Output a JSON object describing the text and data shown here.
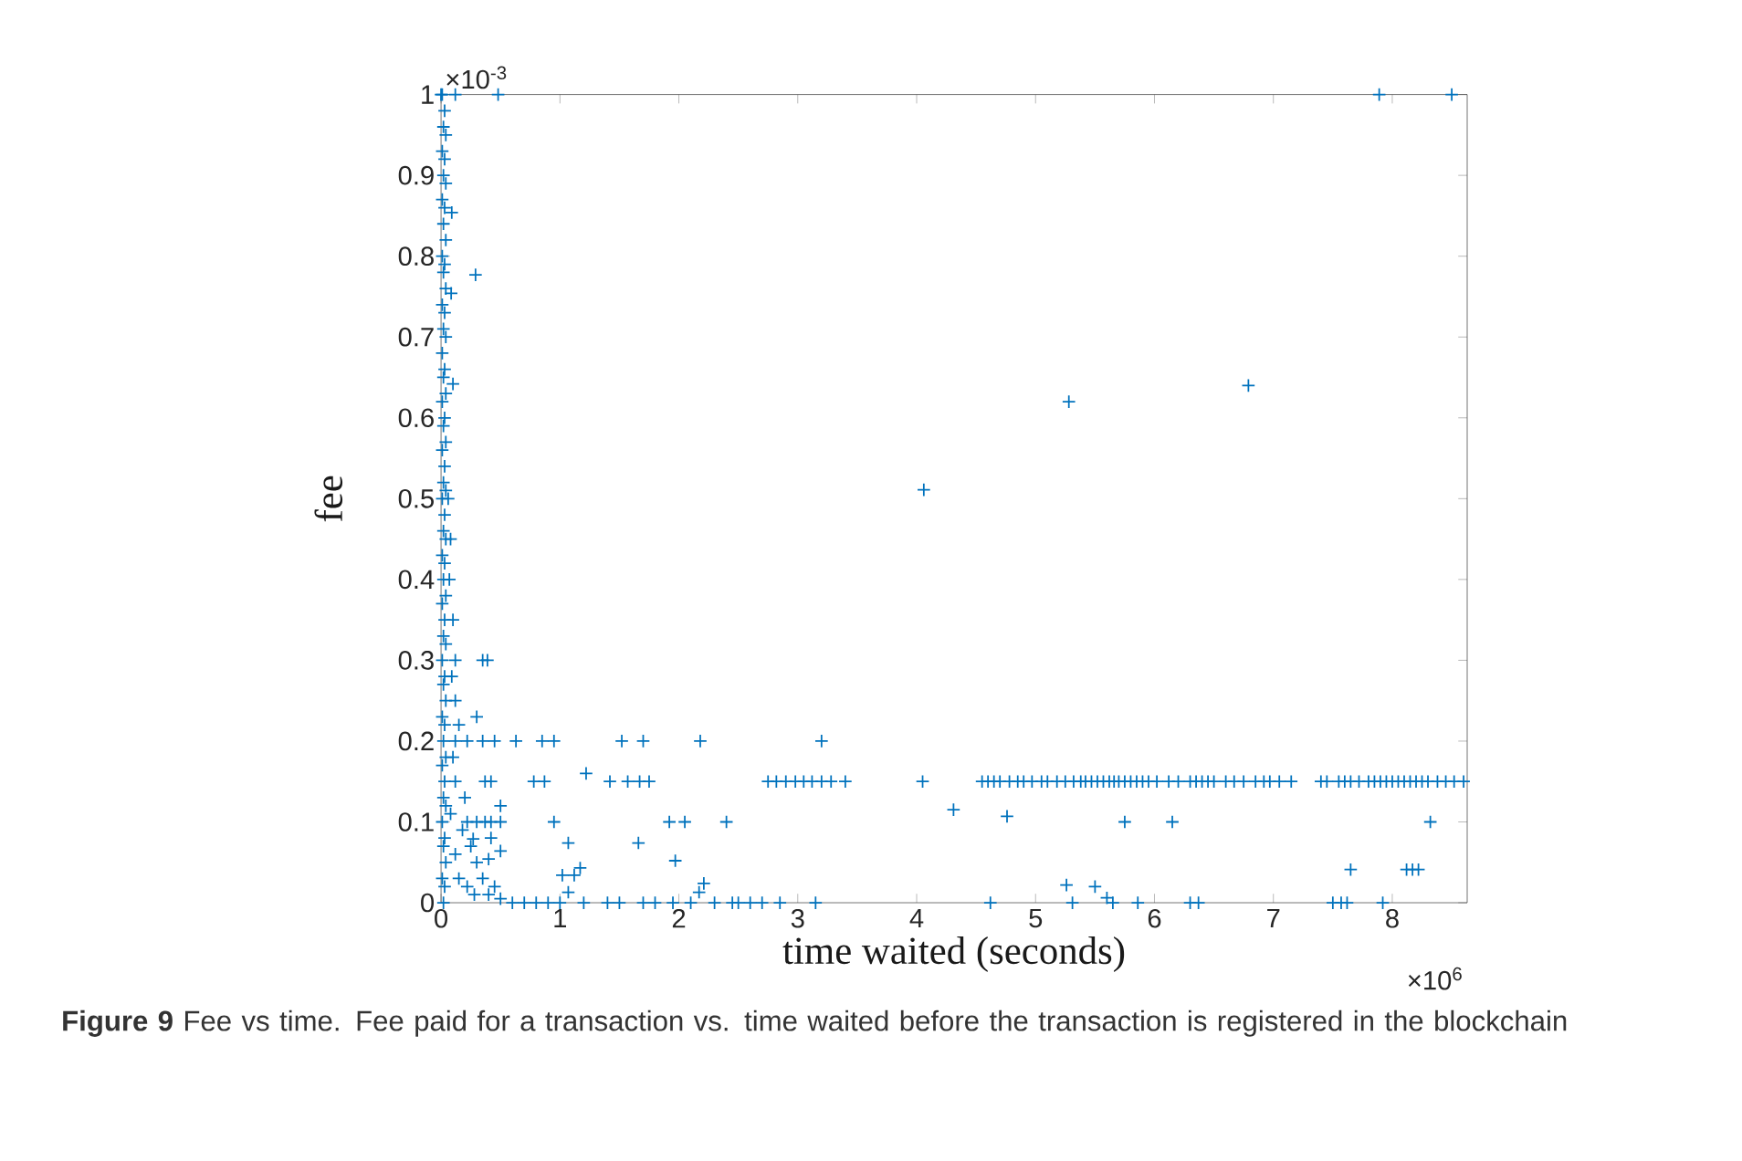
{
  "chart_data": {
    "type": "scatter",
    "xlabel": "time waited (seconds)",
    "ylabel": "fee",
    "marker": "cross",
    "xlim": [
      0,
      8.63
    ],
    "ylim": [
      0,
      1
    ],
    "xticks": [
      0,
      1,
      2,
      3,
      4,
      5,
      6,
      7,
      8
    ],
    "yticks": [
      0,
      0.1,
      0.2,
      0.3,
      0.4,
      0.5,
      0.6,
      0.7,
      0.8,
      0.9,
      1
    ],
    "annotations": [
      "×10$^{-3}$",
      "×10$^{6}$",
      "**Figure 9**  Fee vs time. Fee paid for a transaction vs. time waited before the transaction is registered in the blockchain"
    ],
    "series": [
      {
        "color": "#0072bd",
        "x": [
          0.01,
          0.03,
          0.02,
          0.04,
          0.01,
          0.03,
          0.02,
          0.04,
          0.01,
          0.03,
          0.02,
          0.04,
          0.01,
          0.03,
          0.02,
          0.04,
          0.01,
          0.03,
          0.02,
          0.04,
          0.01,
          0.03,
          0.02,
          0.04,
          0.01,
          0.03,
          0.02,
          0.04,
          0.01,
          0.03,
          0.02,
          0.04,
          0.01,
          0.03,
          0.02,
          0.04,
          0.01,
          0.03,
          0.02,
          0.04,
          0.01,
          0.03,
          0.02,
          0.04,
          0.01,
          0.03,
          0.02,
          0.04,
          0.01,
          0.03,
          0.02,
          0.04,
          0.01,
          0.03,
          0.02,
          0.04,
          0.01,
          0.03,
          0.02,
          0.04,
          0.01,
          0.03,
          0.02
        ],
        "values": [
          1.0,
          0.98,
          0.96,
          0.95,
          0.93,
          0.92,
          0.9,
          0.89,
          0.87,
          0.86,
          0.84,
          0.82,
          0.8,
          0.79,
          0.78,
          0.76,
          0.74,
          0.73,
          0.71,
          0.7,
          0.68,
          0.66,
          0.65,
          0.63,
          0.62,
          0.6,
          0.59,
          0.57,
          0.56,
          0.54,
          0.52,
          0.51,
          0.5,
          0.48,
          0.46,
          0.45,
          0.43,
          0.42,
          0.4,
          0.38,
          0.37,
          0.35,
          0.33,
          0.32,
          0.3,
          0.28,
          0.27,
          0.25,
          0.23,
          0.22,
          0.2,
          0.18,
          0.17,
          0.15,
          0.13,
          0.12,
          0.1,
          0.08,
          0.07,
          0.05,
          0.03,
          0.02,
          0
        ]
      },
      {
        "color": "#0072bd",
        "x": [
          0.06,
          0.08,
          0.07,
          0.1,
          0.09,
          0.12,
          0.15,
          0.1,
          0.2,
          0.18,
          0.25,
          0.3,
          0.35,
          0.15,
          0.22,
          0.4,
          0.45,
          0.5,
          0.28,
          0.12,
          0.08
        ],
        "values": [
          0.5,
          0.45,
          0.4,
          0.35,
          0.28,
          0.25,
          0.22,
          0.18,
          0.13,
          0.09,
          0.07,
          0.05,
          0.03,
          0.03,
          0.02,
          0.01,
          0.02,
          0.005,
          0.01,
          0.06,
          0.11
        ]
      },
      {
        "color": "#0072bd",
        "x": [
          0,
          0.12,
          0.48,
          0.09,
          0.29,
          0.085,
          0.1,
          0.12,
          0.35,
          0.39,
          0.3,
          0.27,
          0.5,
          0.5,
          1.07,
          1.66,
          1.97,
          1.02,
          1.12,
          1.17,
          1.07,
          2.21,
          2.17,
          0.42,
          0.4,
          1.22,
          3.2,
          4.31,
          4.76,
          5.26,
          5.5,
          5.6,
          7.65,
          8.12,
          8.17,
          8.22,
          4.06,
          5.28,
          6.79,
          7.89,
          8.5
        ],
        "values": [
          1,
          1,
          1,
          0.854,
          0.777,
          0.754,
          0.642,
          0.3,
          0.3,
          0.3,
          0.23,
          0.079,
          0.12,
          0.064,
          0.074,
          0.074,
          0.052,
          0.034,
          0.034,
          0.043,
          0.013,
          0.024,
          0.013,
          0.08,
          0.054,
          0.16,
          0.2,
          0.115,
          0.107,
          0.022,
          0.02,
          0.006,
          0.041,
          0.041,
          0.041,
          0.041,
          0.511,
          0.62,
          0.64,
          1,
          1
        ]
      },
      {
        "color": "#0072bd",
        "x": [
          0.12,
          0.22,
          0.35,
          0.45,
          0.63,
          0.85,
          0.95,
          1.52,
          1.7,
          2.18
        ],
        "values": [
          0.2,
          0.2,
          0.2,
          0.2,
          0.2,
          0.2,
          0.2,
          0.2,
          0.2,
          0.2
        ]
      },
      {
        "color": "#0072bd",
        "x": [
          0.12,
          0.37,
          0.42,
          0.78,
          0.87,
          1.42,
          1.57,
          1.67,
          1.75,
          2.75,
          2.82,
          2.9,
          2.98,
          3.05,
          3.12,
          3.2,
          3.28,
          3.4,
          4.05
        ],
        "values": [
          0.15,
          0.15,
          0.15,
          0.15,
          0.15,
          0.15,
          0.15,
          0.15,
          0.15,
          0.15,
          0.15,
          0.15,
          0.15,
          0.15,
          0.15,
          0.15,
          0.15,
          0.15,
          0.15
        ]
      },
      {
        "color": "#0072bd",
        "x": [
          4.55,
          4.6,
          4.65,
          4.7,
          4.78,
          4.85,
          4.9,
          4.97,
          5.05,
          5.1,
          5.18,
          5.25,
          5.32,
          5.38,
          5.42,
          5.47,
          5.52,
          5.57,
          5.62,
          5.66,
          5.7,
          5.75,
          5.8,
          5.85,
          5.9,
          5.95,
          6.02,
          6.12,
          6.2,
          6.3,
          6.35,
          6.4,
          6.45,
          6.5,
          6.6,
          6.67,
          6.75,
          6.85,
          6.92,
          6.97,
          7.05,
          7.15,
          7.4,
          7.45,
          7.55,
          7.6,
          7.65,
          7.72,
          7.8,
          7.85,
          7.9,
          7.95,
          8.0,
          8.05,
          8.1,
          8.15,
          8.2,
          8.25,
          8.3,
          8.38,
          8.45,
          8.52,
          8.6
        ],
        "values": [
          0.15,
          0.15,
          0.15,
          0.15,
          0.15,
          0.15,
          0.15,
          0.15,
          0.15,
          0.15,
          0.15,
          0.15,
          0.15,
          0.15,
          0.15,
          0.15,
          0.15,
          0.15,
          0.15,
          0.15,
          0.15,
          0.15,
          0.15,
          0.15,
          0.15,
          0.15,
          0.15,
          0.15,
          0.15,
          0.15,
          0.15,
          0.15,
          0.15,
          0.15,
          0.15,
          0.15,
          0.15,
          0.15,
          0.15,
          0.15,
          0.15,
          0.15,
          0.15,
          0.15,
          0.15,
          0.15,
          0.15,
          0.15,
          0.15,
          0.15,
          0.15,
          0.15,
          0.15,
          0.15,
          0.15,
          0.15,
          0.15,
          0.15,
          0.15,
          0.15,
          0.15,
          0.15,
          0.15
        ]
      },
      {
        "color": "#0072bd",
        "x": [
          0.22,
          0.3,
          0.37,
          0.42,
          0.5,
          0.95,
          1.92,
          2.05,
          2.4,
          5.75,
          6.15,
          8.32
        ],
        "values": [
          0.1,
          0.1,
          0.1,
          0.1,
          0.1,
          0.1,
          0.1,
          0.1,
          0.1,
          0.1,
          0.1,
          0.1
        ]
      },
      {
        "color": "#0072bd",
        "x": [
          0.6,
          0.7,
          0.8,
          0.9,
          1.0,
          1.2,
          1.4,
          1.5,
          1.7,
          1.8,
          1.95,
          2.1,
          2.3,
          2.5,
          2.7,
          2.45,
          2.6,
          2.85,
          3.15,
          4.62,
          5.31,
          5.65,
          5.86,
          6.3,
          6.37,
          7.5,
          7.57,
          7.62,
          7.92
        ],
        "values": [
          0,
          0,
          0,
          0,
          0,
          0,
          0,
          0,
          0,
          0,
          0,
          0,
          0,
          0,
          0,
          0,
          0,
          0,
          0,
          0,
          0,
          0,
          0,
          0,
          0,
          0,
          0,
          0,
          0
        ]
      }
    ]
  }
}
